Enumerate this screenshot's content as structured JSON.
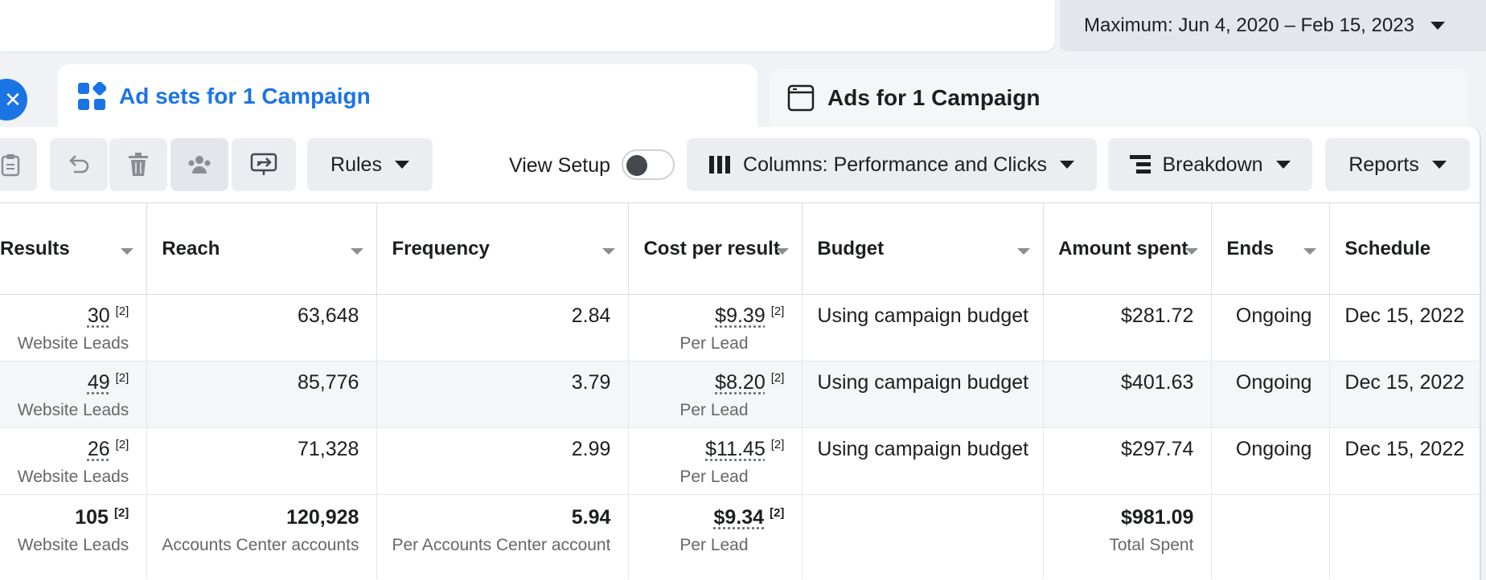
{
  "date_range": {
    "label": "Maximum: Jun 4, 2020 – Feb 15, 2023"
  },
  "tabs": [
    {
      "label": "Ad sets for 1 Campaign",
      "active": true,
      "icon": "grid-icon"
    },
    {
      "label": "Ads for 1 Campaign",
      "active": false,
      "icon": "ad-frame-icon"
    }
  ],
  "toolbar": {
    "rules_label": "Rules",
    "view_setup_label": "View Setup",
    "columns_label": "Columns: Performance and Clicks",
    "breakdown_label": "Breakdown",
    "reports_label": "Reports"
  },
  "table": {
    "headers": [
      "Results",
      "Reach",
      "Frequency",
      "Cost per result",
      "Budget",
      "Amount spent",
      "Ends",
      "Schedule"
    ],
    "rows": [
      {
        "results": "30",
        "results_note": "[2]",
        "results_sub": "Website Leads",
        "reach": "63,648",
        "frequency": "2.84",
        "cost": "$9.39",
        "cost_note": "[2]",
        "cost_sub": "Per Lead",
        "budget": "Using campaign budget",
        "spent": "$281.72",
        "ends": "Ongoing",
        "schedule": "Dec 15, 2022"
      },
      {
        "results": "49",
        "results_note": "[2]",
        "results_sub": "Website Leads",
        "reach": "85,776",
        "frequency": "3.79",
        "cost": "$8.20",
        "cost_note": "[2]",
        "cost_sub": "Per Lead",
        "budget": "Using campaign budget",
        "spent": "$401.63",
        "ends": "Ongoing",
        "schedule": "Dec 15, 2022"
      },
      {
        "results": "26",
        "results_note": "[2]",
        "results_sub": "Website Leads",
        "reach": "71,328",
        "frequency": "2.99",
        "cost": "$11.45",
        "cost_note": "[2]",
        "cost_sub": "Per Lead",
        "budget": "Using campaign budget",
        "spent": "$297.74",
        "ends": "Ongoing",
        "schedule": "Dec 15, 2022"
      }
    ],
    "totals": {
      "results": "105",
      "results_note": "[2]",
      "results_sub": "Website Leads",
      "reach": "120,928",
      "reach_sub": "Accounts Center accounts",
      "frequency": "5.94",
      "frequency_sub": "Per Accounts Center account",
      "cost": "$9.34",
      "cost_note": "[2]",
      "cost_sub": "Per Lead",
      "spent": "$981.09",
      "spent_sub": "Total Spent"
    }
  },
  "colors": {
    "accent": "#1b74e4",
    "panel": "#ffffff",
    "background": "#f0f2f5"
  }
}
